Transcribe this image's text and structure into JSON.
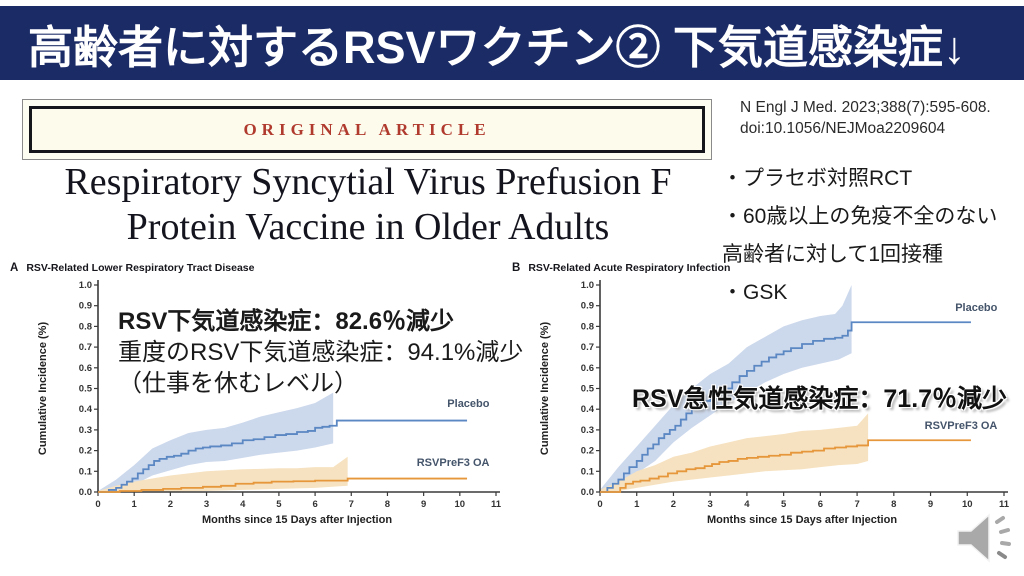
{
  "slide": {
    "title": "高齢者に対するRSVワクチン② 下気道感染症↓"
  },
  "colors": {
    "header_bg": "#1b2b66",
    "banner_red": "#b03a2e",
    "banner_cream": "#fdfcec",
    "placebo_blue": "#5b87c3",
    "placebo_band": "#ccd8ec",
    "vaccine_orange": "#e6973b",
    "vaccine_band": "#f6e2c0"
  },
  "article": {
    "banner": "ORIGINAL ARTICLE",
    "title_line1": "Respiratory Syncytial Virus Prefusion F",
    "title_line2": "Protein Vaccine in Older Adults",
    "citation_line1": "N Engl J Med. 2023;388(7):595-608.",
    "citation_line2": "doi:10.1056/NEJMoa2209604"
  },
  "notes": {
    "bullet1": "・プラセボ対照RCT",
    "bullet2": "・60歳以上の免疫不全のない高齢者に対して1回接種",
    "bullet3": "・GSK"
  },
  "annotations": {
    "a_line1": "RSV下気道感染症：82.6％減少",
    "a_line2": "重度のRSV下気道感染症：94.1%減少",
    "a_line3": "（仕事を休むレベル）",
    "b_line1": "RSV急性気道感染症：71.7％減少"
  },
  "chart_data": [
    {
      "type": "line",
      "panel": "A",
      "title": "RSV-Related Lower Respiratory Tract Disease",
      "xlabel": "Months since 15 Days after Injection",
      "ylabel": "Cumulative Incidence (%)",
      "xlim": [
        0,
        11
      ],
      "ylim": [
        0,
        1
      ],
      "xticks": [
        0,
        1,
        2,
        3,
        4,
        5,
        6,
        7,
        8,
        9,
        10,
        11
      ],
      "yticks": [
        0,
        0.1,
        0.2,
        0.3,
        0.4,
        0.5,
        0.6,
        0.7,
        0.8,
        0.9,
        1.0
      ],
      "grid": false,
      "series": [
        {
          "name": "Placebo",
          "key": "placebo",
          "color": "#5b87c3",
          "band_color": "#ccd8ec",
          "label_y": 0.41,
          "points": [
            [
              0,
              0
            ],
            [
              0.3,
              0.01
            ],
            [
              0.5,
              0.02
            ],
            [
              0.65,
              0.035
            ],
            [
              0.8,
              0.05
            ],
            [
              0.95,
              0.065
            ],
            [
              1.1,
              0.09
            ],
            [
              1.25,
              0.11
            ],
            [
              1.4,
              0.13
            ],
            [
              1.55,
              0.15
            ],
            [
              1.7,
              0.16
            ],
            [
              1.9,
              0.17
            ],
            [
              2.1,
              0.175
            ],
            [
              2.3,
              0.185
            ],
            [
              2.5,
              0.2
            ],
            [
              2.7,
              0.21
            ],
            [
              2.9,
              0.215
            ],
            [
              3.1,
              0.22
            ],
            [
              3.4,
              0.225
            ],
            [
              3.7,
              0.235
            ],
            [
              4.0,
              0.25
            ],
            [
              4.3,
              0.255
            ],
            [
              4.6,
              0.265
            ],
            [
              4.9,
              0.275
            ],
            [
              5.2,
              0.28
            ],
            [
              5.5,
              0.29
            ],
            [
              5.8,
              0.295
            ],
            [
              6.0,
              0.31
            ],
            [
              6.2,
              0.315
            ],
            [
              6.4,
              0.32
            ],
            [
              6.6,
              0.345
            ],
            [
              10.2,
              0.345
            ]
          ],
          "band_upper": [
            [
              0,
              0.005
            ],
            [
              0.5,
              0.06
            ],
            [
              1,
              0.13
            ],
            [
              1.5,
              0.21
            ],
            [
              2,
              0.25
            ],
            [
              2.5,
              0.285
            ],
            [
              3,
              0.3
            ],
            [
              3.5,
              0.31
            ],
            [
              4,
              0.335
            ],
            [
              4.5,
              0.365
            ],
            [
              5,
              0.385
            ],
            [
              5.5,
              0.405
            ],
            [
              6,
              0.43
            ],
            [
              6.5,
              0.48
            ]
          ],
          "band_lower": [
            [
              0,
              0
            ],
            [
              0.5,
              0.005
            ],
            [
              1,
              0.035
            ],
            [
              1.5,
              0.08
            ],
            [
              2,
              0.105
            ],
            [
              2.5,
              0.13
            ],
            [
              3,
              0.145
            ],
            [
              3.5,
              0.15
            ],
            [
              4,
              0.165
            ],
            [
              4.5,
              0.18
            ],
            [
              5,
              0.19
            ],
            [
              5.5,
              0.2
            ],
            [
              6,
              0.215
            ],
            [
              6.5,
              0.235
            ]
          ]
        },
        {
          "name": "RSVPreF3 OA",
          "key": "rsvpref3-oa",
          "color": "#e6973b",
          "band_color": "#f6e2c0",
          "label_y": 0.125,
          "points": [
            [
              0,
              0
            ],
            [
              0.6,
              0.005
            ],
            [
              1.2,
              0.01
            ],
            [
              1.8,
              0.015
            ],
            [
              2.3,
              0.02
            ],
            [
              2.9,
              0.025
            ],
            [
              3.4,
              0.03
            ],
            [
              3.8,
              0.04
            ],
            [
              4.3,
              0.045
            ],
            [
              4.8,
              0.05
            ],
            [
              5.4,
              0.052
            ],
            [
              6.0,
              0.055
            ],
            [
              6.9,
              0.065
            ],
            [
              10.2,
              0.065
            ]
          ],
          "band_upper": [
            [
              0,
              0.005
            ],
            [
              0.5,
              0.03
            ],
            [
              1,
              0.05
            ],
            [
              1.5,
              0.065
            ],
            [
              2,
              0.08
            ],
            [
              2.5,
              0.09
            ],
            [
              3,
              0.1
            ],
            [
              3.5,
              0.105
            ],
            [
              4,
              0.11
            ],
            [
              4.5,
              0.112
            ],
            [
              5,
              0.115
            ],
            [
              5.5,
              0.115
            ],
            [
              6,
              0.12
            ],
            [
              6.5,
              0.12
            ],
            [
              6.9,
              0.17
            ]
          ],
          "band_lower": [
            [
              0,
              0
            ],
            [
              1,
              0
            ],
            [
              2,
              0.002
            ],
            [
              3,
              0.005
            ],
            [
              4,
              0.01
            ],
            [
              5,
              0.015
            ],
            [
              6,
              0.02
            ],
            [
              6.9,
              0.03
            ]
          ]
        }
      ]
    },
    {
      "type": "line",
      "panel": "B",
      "title": "RSV-Related Acute Respiratory Infection",
      "xlabel": "Months since 15 Days after Injection",
      "ylabel": "Cumulative Incidence (%)",
      "xlim": [
        0,
        11
      ],
      "ylim": [
        0,
        1
      ],
      "xticks": [
        0,
        1,
        2,
        3,
        4,
        5,
        6,
        7,
        8,
        9,
        10,
        11
      ],
      "yticks": [
        0,
        0.1,
        0.2,
        0.3,
        0.4,
        0.5,
        0.6,
        0.7,
        0.8,
        0.9,
        1.0
      ],
      "grid": false,
      "series": [
        {
          "name": "Placebo",
          "key": "placebo",
          "color": "#5b87c3",
          "band_color": "#ccd8ec",
          "label_y": 0.875,
          "points": [
            [
              0,
              0
            ],
            [
              0.2,
              0.02
            ],
            [
              0.35,
              0.04
            ],
            [
              0.5,
              0.06
            ],
            [
              0.65,
              0.09
            ],
            [
              0.8,
              0.12
            ],
            [
              1.0,
              0.15
            ],
            [
              1.15,
              0.18
            ],
            [
              1.3,
              0.21
            ],
            [
              1.45,
              0.23
            ],
            [
              1.6,
              0.26
            ],
            [
              1.75,
              0.28
            ],
            [
              1.9,
              0.3
            ],
            [
              2.05,
              0.32
            ],
            [
              2.2,
              0.35
            ],
            [
              2.35,
              0.38
            ],
            [
              2.5,
              0.41
            ],
            [
              2.65,
              0.43
            ],
            [
              2.8,
              0.44
            ],
            [
              3.0,
              0.46
            ],
            [
              3.2,
              0.475
            ],
            [
              3.4,
              0.5
            ],
            [
              3.6,
              0.53
            ],
            [
              3.8,
              0.56
            ],
            [
              4.0,
              0.585
            ],
            [
              4.2,
              0.61
            ],
            [
              4.4,
              0.63
            ],
            [
              4.6,
              0.65
            ],
            [
              4.8,
              0.665
            ],
            [
              5.0,
              0.68
            ],
            [
              5.2,
              0.695
            ],
            [
              5.5,
              0.715
            ],
            [
              5.8,
              0.73
            ],
            [
              6.1,
              0.74
            ],
            [
              6.4,
              0.745
            ],
            [
              6.6,
              0.755
            ],
            [
              6.75,
              0.78
            ],
            [
              6.85,
              0.82
            ],
            [
              10.1,
              0.82
            ]
          ],
          "band_upper": [
            [
              0,
              0.01
            ],
            [
              0.5,
              0.12
            ],
            [
              1,
              0.22
            ],
            [
              1.5,
              0.32
            ],
            [
              2,
              0.42
            ],
            [
              2.5,
              0.5
            ],
            [
              3,
              0.57
            ],
            [
              3.5,
              0.62
            ],
            [
              4,
              0.7
            ],
            [
              4.5,
              0.75
            ],
            [
              5,
              0.8
            ],
            [
              5.5,
              0.83
            ],
            [
              6,
              0.85
            ],
            [
              6.4,
              0.86
            ],
            [
              6.6,
              0.9
            ],
            [
              6.85,
              1.0
            ]
          ],
          "band_lower": [
            [
              0,
              0
            ],
            [
              0.5,
              0.03
            ],
            [
              1,
              0.09
            ],
            [
              1.5,
              0.15
            ],
            [
              2,
              0.24
            ],
            [
              2.5,
              0.31
            ],
            [
              3,
              0.37
            ],
            [
              3.5,
              0.43
            ],
            [
              4,
              0.48
            ],
            [
              4.5,
              0.53
            ],
            [
              5,
              0.57
            ],
            [
              5.5,
              0.6
            ],
            [
              6,
              0.62
            ],
            [
              6.5,
              0.64
            ],
            [
              6.85,
              0.67
            ]
          ]
        },
        {
          "name": "RSVPreF3 OA",
          "key": "rsvpref3-oa",
          "color": "#e6973b",
          "band_color": "#f6e2c0",
          "label_y": 0.305,
          "points": [
            [
              0,
              0
            ],
            [
              0.55,
              0.02
            ],
            [
              0.7,
              0.04
            ],
            [
              0.9,
              0.05
            ],
            [
              1.1,
              0.055
            ],
            [
              1.35,
              0.065
            ],
            [
              1.6,
              0.075
            ],
            [
              1.85,
              0.09
            ],
            [
              2.1,
              0.1
            ],
            [
              2.35,
              0.11
            ],
            [
              2.6,
              0.115
            ],
            [
              2.85,
              0.125
            ],
            [
              3.05,
              0.135
            ],
            [
              3.25,
              0.145
            ],
            [
              3.5,
              0.15
            ],
            [
              3.75,
              0.16
            ],
            [
              4.0,
              0.165
            ],
            [
              4.3,
              0.17
            ],
            [
              4.6,
              0.175
            ],
            [
              4.9,
              0.18
            ],
            [
              5.2,
              0.19
            ],
            [
              5.5,
              0.195
            ],
            [
              5.8,
              0.2
            ],
            [
              6.1,
              0.21
            ],
            [
              6.4,
              0.215
            ],
            [
              6.7,
              0.22
            ],
            [
              7.0,
              0.225
            ],
            [
              7.3,
              0.25
            ],
            [
              10.1,
              0.25
            ]
          ],
          "band_upper": [
            [
              0,
              0.01
            ],
            [
              0.5,
              0.05
            ],
            [
              1,
              0.1
            ],
            [
              1.5,
              0.13
            ],
            [
              2,
              0.17
            ],
            [
              2.5,
              0.19
            ],
            [
              3,
              0.22
            ],
            [
              3.5,
              0.24
            ],
            [
              4,
              0.26
            ],
            [
              4.5,
              0.27
            ],
            [
              5,
              0.28
            ],
            [
              5.5,
              0.295
            ],
            [
              6,
              0.3
            ],
            [
              6.5,
              0.31
            ],
            [
              7,
              0.32
            ],
            [
              7.3,
              0.38
            ]
          ],
          "band_lower": [
            [
              0,
              0
            ],
            [
              0.5,
              0.005
            ],
            [
              1,
              0.02
            ],
            [
              1.5,
              0.035
            ],
            [
              2,
              0.05
            ],
            [
              2.5,
              0.06
            ],
            [
              3,
              0.07
            ],
            [
              3.5,
              0.08
            ],
            [
              4,
              0.09
            ],
            [
              4.5,
              0.1
            ],
            [
              5,
              0.105
            ],
            [
              5.5,
              0.11
            ],
            [
              6,
              0.12
            ],
            [
              6.5,
              0.13
            ],
            [
              7,
              0.135
            ],
            [
              7.3,
              0.15
            ]
          ]
        }
      ]
    }
  ]
}
